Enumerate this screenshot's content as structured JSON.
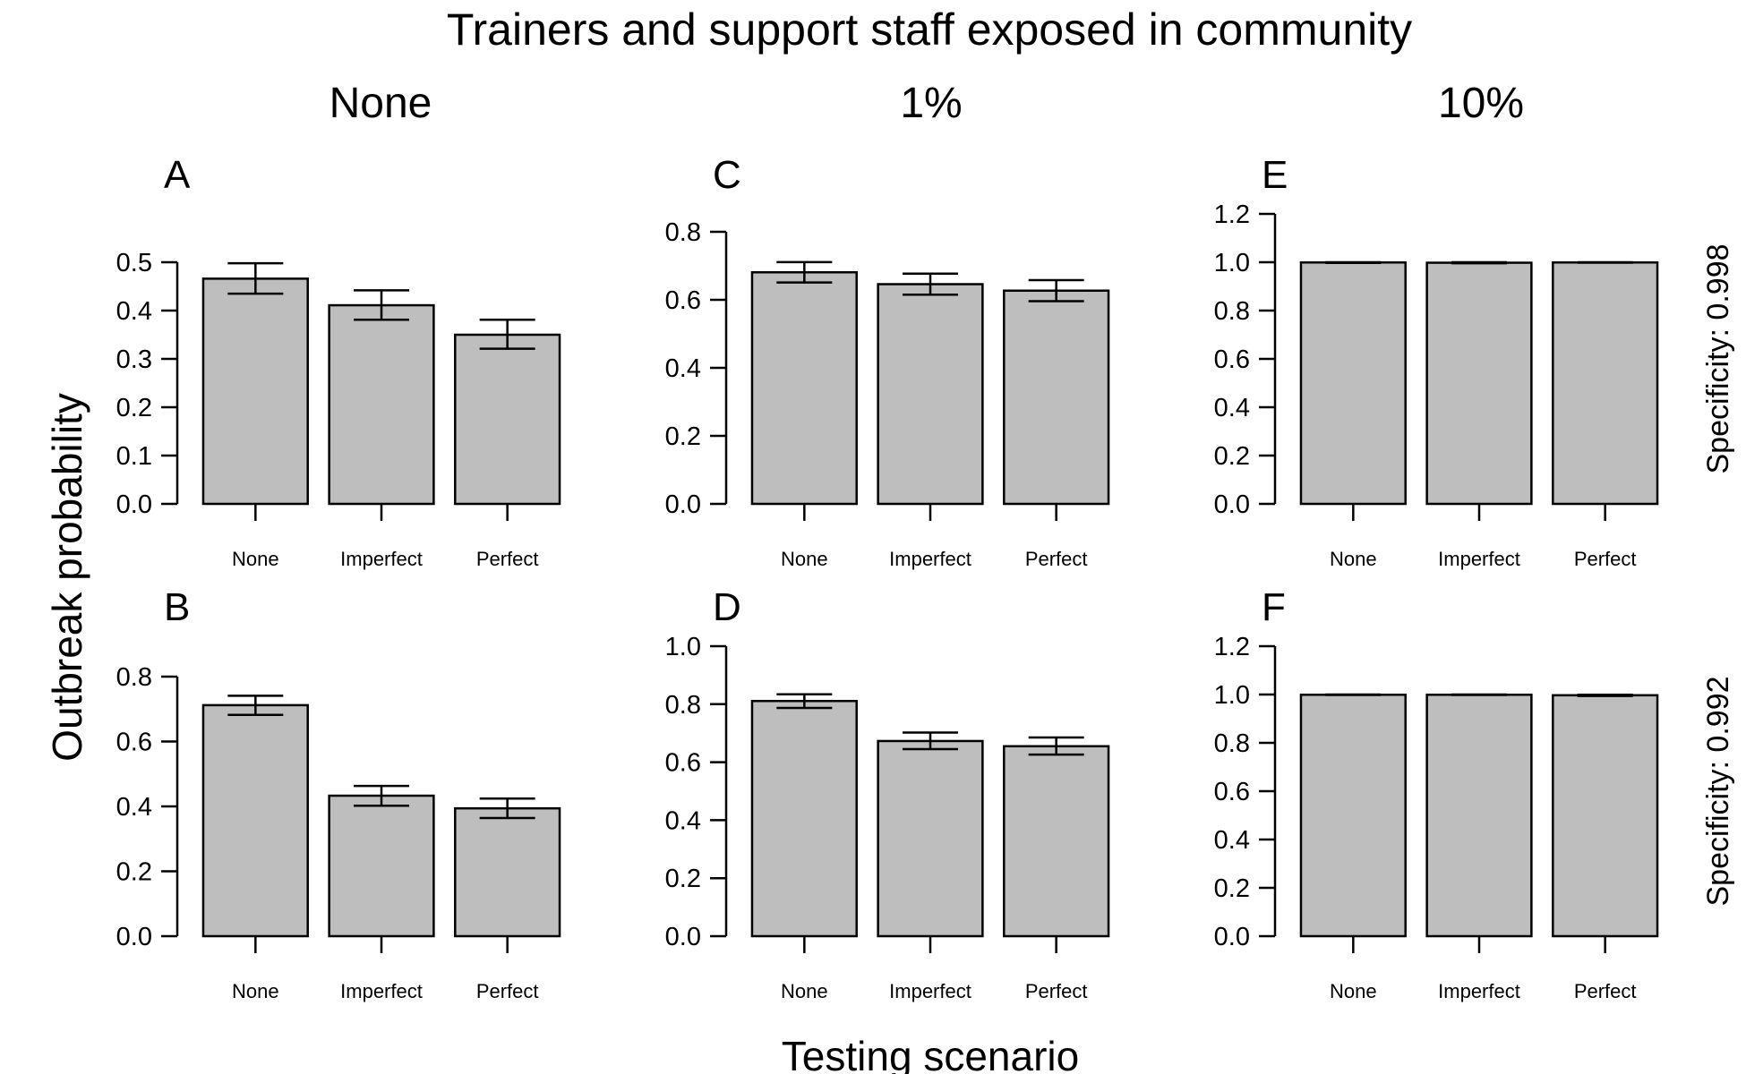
{
  "title": "Trainers and support staff exposed in community",
  "column_titles": [
    "None",
    "1%",
    "10%"
  ],
  "row_labels": [
    "Specificity: 0.998",
    "Specificity: 0.992"
  ],
  "y_axis_label": "Outbreak probability",
  "x_axis_label": "Testing scenario",
  "colors": {
    "bar_fill": "#bebebe",
    "stroke": "#000000"
  },
  "chart_data": [
    {
      "panel": "A",
      "type": "bar",
      "title": "",
      "categories": [
        "None",
        "Imperfect",
        "Perfect"
      ],
      "values": [
        0.466,
        0.411,
        0.35
      ],
      "error_low": [
        0.435,
        0.381,
        0.321
      ],
      "error_high": [
        0.498,
        0.442,
        0.381
      ],
      "ylim": [
        0,
        0.5
      ],
      "yticks": [
        0.0,
        0.1,
        0.2,
        0.3,
        0.4,
        0.5
      ],
      "ytick_labels": [
        "0.0",
        "0.1",
        "0.2",
        "0.3",
        "0.4",
        "0.5"
      ]
    },
    {
      "panel": "B",
      "type": "bar",
      "title": "",
      "categories": [
        "None",
        "Imperfect",
        "Perfect"
      ],
      "values": [
        0.712,
        0.433,
        0.394
      ],
      "error_low": [
        0.682,
        0.402,
        0.364
      ],
      "error_high": [
        0.741,
        0.463,
        0.424
      ],
      "ylim": [
        0,
        0.8
      ],
      "yticks": [
        0.0,
        0.2,
        0.4,
        0.6,
        0.8
      ],
      "ytick_labels": [
        "0.0",
        "0.2",
        "0.4",
        "0.6",
        "0.8"
      ]
    },
    {
      "panel": "C",
      "type": "bar",
      "title": "",
      "categories": [
        "None",
        "Imperfect",
        "Perfect"
      ],
      "values": [
        0.681,
        0.646,
        0.627
      ],
      "error_low": [
        0.651,
        0.615,
        0.596
      ],
      "error_high": [
        0.711,
        0.677,
        0.658
      ],
      "ylim": [
        0,
        0.8
      ],
      "yticks": [
        0.0,
        0.2,
        0.4,
        0.6,
        0.8
      ],
      "ytick_labels": [
        "0.0",
        "0.2",
        "0.4",
        "0.6",
        "0.8"
      ]
    },
    {
      "panel": "D",
      "type": "bar",
      "title": "",
      "categories": [
        "None",
        "Imperfect",
        "Perfect"
      ],
      "values": [
        0.811,
        0.673,
        0.655
      ],
      "error_low": [
        0.787,
        0.645,
        0.626
      ],
      "error_high": [
        0.834,
        0.702,
        0.685
      ],
      "ylim": [
        0,
        1.0
      ],
      "yticks": [
        0.0,
        0.2,
        0.4,
        0.6,
        0.8,
        1.0
      ],
      "ytick_labels": [
        "0.0",
        "0.2",
        "0.4",
        "0.6",
        "0.8",
        "1.0"
      ]
    },
    {
      "panel": "E",
      "type": "bar",
      "title": "",
      "categories": [
        "None",
        "Imperfect",
        "Perfect"
      ],
      "values": [
        0.999,
        0.998,
        0.999
      ],
      "error_low": [
        0.997,
        0.996,
        0.998
      ],
      "error_high": [
        1.0,
        1.0,
        1.0
      ],
      "ylim": [
        0,
        1.2
      ],
      "yticks": [
        0.0,
        0.2,
        0.4,
        0.6,
        0.8,
        1.0,
        1.2
      ],
      "ytick_labels": [
        "0.0",
        "0.2",
        "0.4",
        "0.6",
        "0.8",
        "1.0",
        "1.2"
      ]
    },
    {
      "panel": "F",
      "type": "bar",
      "title": "",
      "categories": [
        "None",
        "Imperfect",
        "Perfect"
      ],
      "values": [
        0.999,
        0.999,
        0.997
      ],
      "error_low": [
        0.998,
        0.998,
        0.994
      ],
      "error_high": [
        1.0,
        1.0,
        0.999
      ],
      "ylim": [
        0,
        1.2
      ],
      "yticks": [
        0.0,
        0.2,
        0.4,
        0.6,
        0.8,
        1.0,
        1.2
      ],
      "ytick_labels": [
        "0.0",
        "0.2",
        "0.4",
        "0.6",
        "0.8",
        "1.0",
        "1.2"
      ]
    }
  ]
}
